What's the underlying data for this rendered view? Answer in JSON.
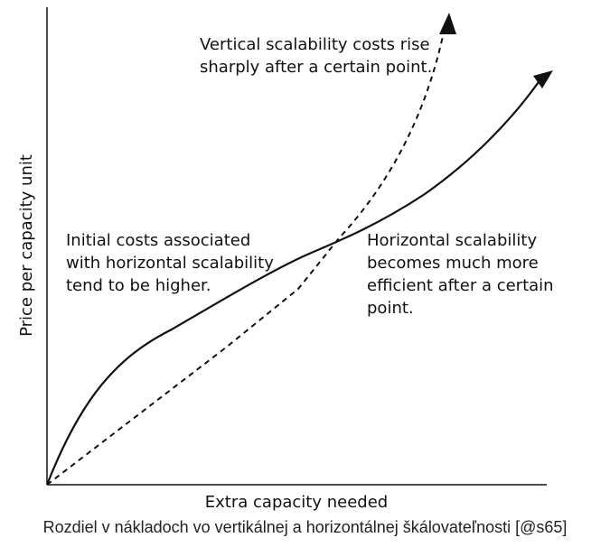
{
  "diagram": {
    "axes": {
      "x_label": "Extra capacity needed",
      "y_label": "Price per capacity unit"
    },
    "curves": [
      {
        "name": "horizontal-scalability",
        "style": "solid"
      },
      {
        "name": "vertical-scalability",
        "style": "dashed"
      }
    ],
    "annotations": {
      "vertical": [
        "Vertical scalability costs rise",
        "sharply after a certain point."
      ],
      "initial": [
        "Initial costs associated",
        "with horizontal scalability",
        "tend to be higher."
      ],
      "horizontal": [
        "Horizontal scalability",
        "becomes much more",
        "efficient after a certain",
        "point."
      ]
    },
    "colors": {
      "line": "#111111",
      "caption": "#222222"
    }
  },
  "caption": "Rozdiel v nákladoch vo vertikálnej a horizontálnej škálovateľnosti [@s65]"
}
